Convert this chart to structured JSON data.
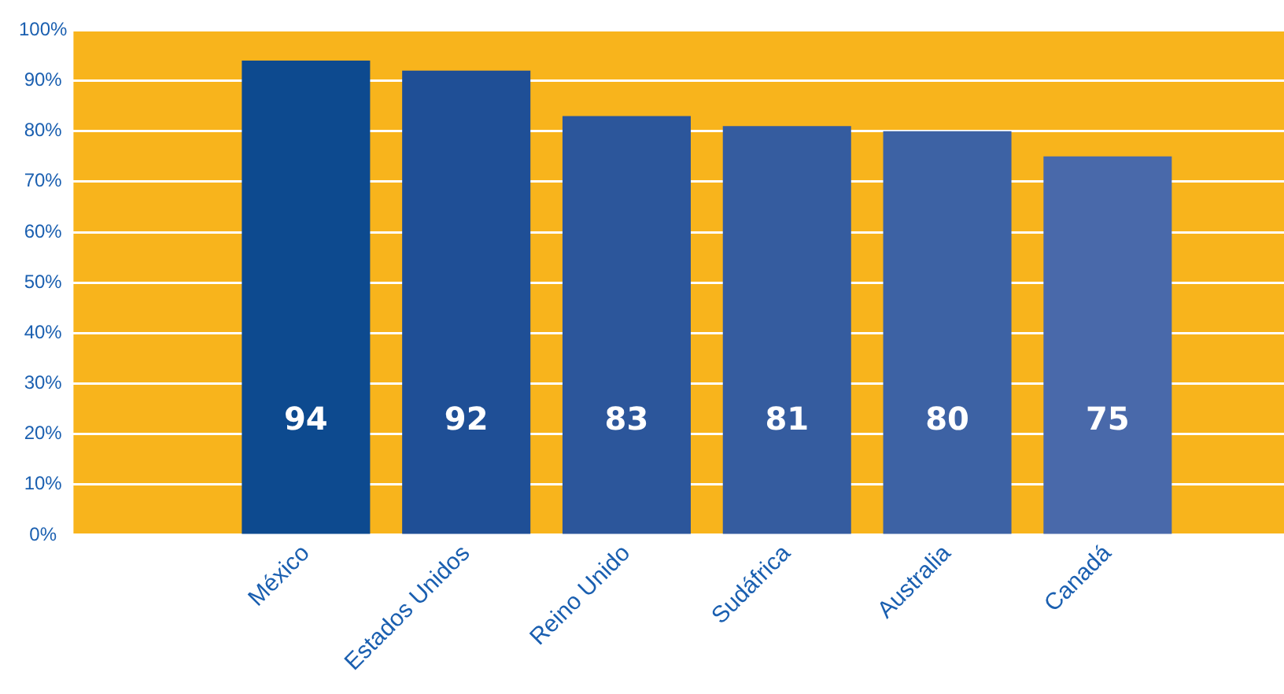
{
  "chart_data": {
    "type": "bar",
    "categories": [
      "México",
      "Estados Unidos",
      "Reino Unido",
      "Sudáfrica",
      "Australia",
      "Canadá"
    ],
    "values": [
      94,
      92,
      83,
      81,
      80,
      75
    ],
    "colors": [
      "#0d4a8f",
      "#1f4f96",
      "#2c569b",
      "#355c9f",
      "#3d62a4",
      "#4969aa"
    ],
    "ylim": [
      0,
      100
    ],
    "yticks": [
      {
        "value": 0,
        "label": "0%"
      },
      {
        "value": 10,
        "label": "10%"
      },
      {
        "value": 20,
        "label": "20%"
      },
      {
        "value": 30,
        "label": "30%"
      },
      {
        "value": 40,
        "label": "40%"
      },
      {
        "value": 50,
        "label": "50%"
      },
      {
        "value": 60,
        "label": "60%"
      },
      {
        "value": 70,
        "label": "70%"
      },
      {
        "value": 80,
        "label": "80%"
      },
      {
        "value": 90,
        "label": "90%"
      },
      {
        "value": 100,
        "label": "100%"
      }
    ],
    "grid": "y",
    "legend": false,
    "data_labels": true
  }
}
